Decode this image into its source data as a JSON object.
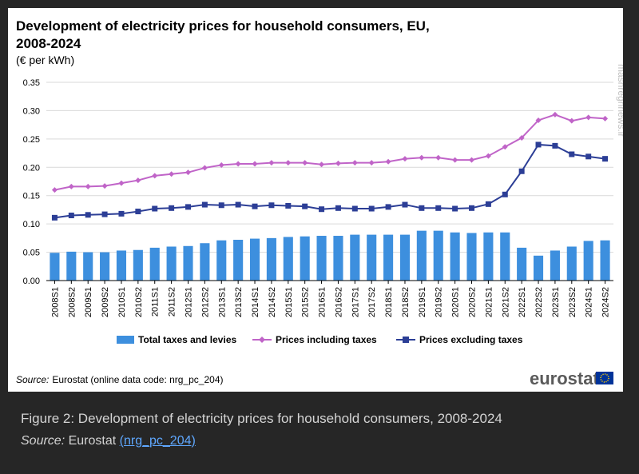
{
  "figure": {
    "title_line1": "Development of electricity prices for household consumers, EU,",
    "title_line2": "2008-2024",
    "unit": "(€ per kWh)",
    "source_label": "Source:",
    "source_text": "Eurostat (online data code: nrg_pc_204)",
    "logo_text": "eurostat",
    "watermark": "mashreghnews.ir"
  },
  "caption": {
    "title": "Figure 2: Development of electricity prices for household consumers, 2008-2024",
    "source_label": "Source:",
    "source_text": "Eurostat",
    "link_open": "(",
    "link_text": "nrg_pc_204",
    "link_close": ")"
  },
  "colors": {
    "bar": "#3d8fde",
    "incl": "#c064c8",
    "excl": "#2c3e96",
    "grid": "#d9d9d9"
  },
  "chart_data": {
    "type": "bar",
    "ylim": [
      0,
      0.35
    ],
    "yticks": [
      "0.00",
      "0.05",
      "0.10",
      "0.15",
      "0.20",
      "0.25",
      "0.30",
      "0.35"
    ],
    "ytick_values": [
      0,
      0.05,
      0.1,
      0.15,
      0.2,
      0.25,
      0.3,
      0.35
    ],
    "categories": [
      "2008S1",
      "2008S2",
      "2009S1",
      "2009S2",
      "2010S1",
      "2010S2",
      "2011S1",
      "2011S2",
      "2012S1",
      "2012S2",
      "2013S1",
      "2013S2",
      "2014S1",
      "2014S2",
      "2015S1",
      "2015S2",
      "2016S1",
      "2016S2",
      "2017S1",
      "2017S2",
      "2018S1",
      "2018S2",
      "2019S1",
      "2019S2",
      "2020S1",
      "2020S2",
      "2021S1",
      "2021S2",
      "2022S1",
      "2022S2",
      "2023S1",
      "2023S2",
      "2024S1",
      "2024S2"
    ],
    "series": [
      {
        "name": "Total taxes and levies",
        "kind": "bar",
        "values": [
          0.049,
          0.051,
          0.05,
          0.05,
          0.053,
          0.054,
          0.058,
          0.06,
          0.061,
          0.066,
          0.071,
          0.072,
          0.074,
          0.075,
          0.077,
          0.078,
          0.079,
          0.079,
          0.081,
          0.081,
          0.081,
          0.081,
          0.088,
          0.088,
          0.085,
          0.084,
          0.085,
          0.085,
          0.058,
          0.044,
          0.053,
          0.06,
          0.07,
          0.071
        ]
      },
      {
        "name": "Prices including taxes",
        "kind": "line",
        "values": [
          0.16,
          0.166,
          0.166,
          0.167,
          0.172,
          0.177,
          0.185,
          0.188,
          0.191,
          0.199,
          0.204,
          0.206,
          0.206,
          0.208,
          0.208,
          0.208,
          0.205,
          0.207,
          0.208,
          0.208,
          0.21,
          0.215,
          0.217,
          0.217,
          0.213,
          0.213,
          0.22,
          0.236,
          0.252,
          0.283,
          0.293,
          0.282,
          0.288,
          0.286
        ]
      },
      {
        "name": "Prices excluding taxes",
        "kind": "line",
        "values": [
          0.111,
          0.115,
          0.116,
          0.117,
          0.118,
          0.122,
          0.127,
          0.128,
          0.13,
          0.134,
          0.133,
          0.134,
          0.131,
          0.133,
          0.132,
          0.131,
          0.126,
          0.128,
          0.127,
          0.127,
          0.13,
          0.134,
          0.128,
          0.128,
          0.127,
          0.128,
          0.135,
          0.152,
          0.193,
          0.24,
          0.238,
          0.223,
          0.219,
          0.215
        ]
      }
    ],
    "legend": [
      "Total taxes and levies",
      "Prices including taxes",
      "Prices excluding taxes"
    ],
    "legend_position": "bottom",
    "grid": true
  }
}
